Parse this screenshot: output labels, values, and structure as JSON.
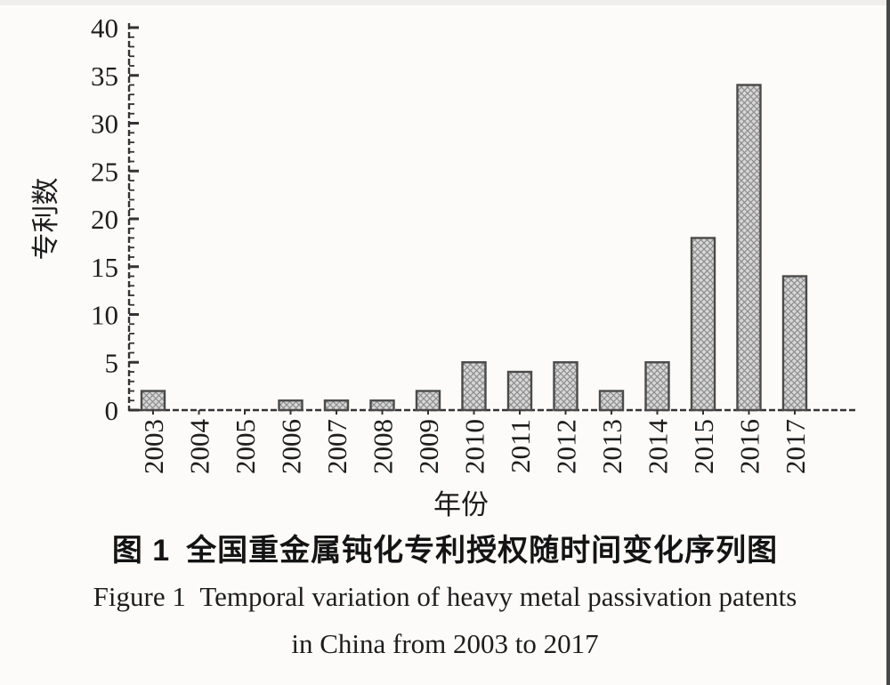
{
  "figure": {
    "caption_cn": "图 1 全国重金属钝化专利授权随时间变化序列图",
    "caption_en_line1": "Figure 1 Temporal variation of heavy metal passivation patents",
    "caption_en_line2": "in China from 2003 to 2017"
  },
  "chart_data": {
    "type": "bar",
    "categories": [
      "2003",
      "2004",
      "2005",
      "2006",
      "2007",
      "2008",
      "2009",
      "2010",
      "2011",
      "2012",
      "2013",
      "2014",
      "2015",
      "2016",
      "2017"
    ],
    "values": [
      2,
      0,
      0,
      1,
      1,
      1,
      2,
      5,
      4,
      5,
      2,
      5,
      18,
      34,
      14
    ],
    "title": "",
    "xlabel": "年份",
    "ylabel": "专利数",
    "ylim": [
      0,
      40
    ],
    "yticks": [
      0,
      5,
      10,
      15,
      20,
      25,
      30,
      35,
      40
    ],
    "minor_tick_step": 1,
    "grid": false,
    "legend_position": "none",
    "colors": {
      "bar_fill": "#d7d7d7",
      "bar_hatch": "#8d8d8d",
      "bar_border": "#4a4a4a",
      "axis": "#333333",
      "text": "#1d1d1d",
      "background": "#fcfbfa",
      "scan_edge": "#474747"
    }
  }
}
